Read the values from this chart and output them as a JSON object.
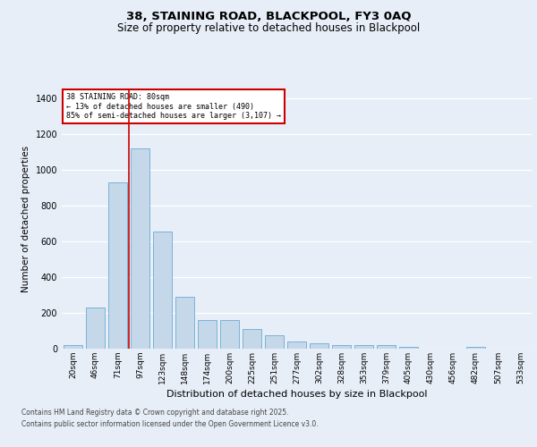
{
  "title_line1": "38, STAINING ROAD, BLACKPOOL, FY3 0AQ",
  "title_line2": "Size of property relative to detached houses in Blackpool",
  "xlabel": "Distribution of detached houses by size in Blackpool",
  "ylabel": "Number of detached properties",
  "bar_color": "#c5d8ea",
  "bar_edge_color": "#6aaad4",
  "categories": [
    "20sqm",
    "46sqm",
    "71sqm",
    "97sqm",
    "123sqm",
    "148sqm",
    "174sqm",
    "200sqm",
    "225sqm",
    "251sqm",
    "277sqm",
    "302sqm",
    "328sqm",
    "353sqm",
    "379sqm",
    "405sqm",
    "430sqm",
    "456sqm",
    "482sqm",
    "507sqm",
    "533sqm"
  ],
  "values": [
    18,
    228,
    930,
    1120,
    655,
    290,
    160,
    160,
    110,
    75,
    40,
    30,
    20,
    20,
    18,
    8,
    0,
    0,
    8,
    0,
    0
  ],
  "ylim": [
    0,
    1450
  ],
  "yticks": [
    0,
    200,
    400,
    600,
    800,
    1000,
    1200,
    1400
  ],
  "vline_index": 2,
  "marker_label_title": "38 STAINING ROAD: 80sqm",
  "marker_label_line2": "← 13% of detached houses are smaller (490)",
  "marker_label_line3": "85% of semi-detached houses are larger (3,107) →",
  "vline_color": "#cc0000",
  "annotation_box_color": "#cc0000",
  "background_color": "#e8eef8",
  "grid_color": "#ffffff",
  "footer_line1": "Contains HM Land Registry data © Crown copyright and database right 2025.",
  "footer_line2": "Contains public sector information licensed under the Open Government Licence v3.0."
}
